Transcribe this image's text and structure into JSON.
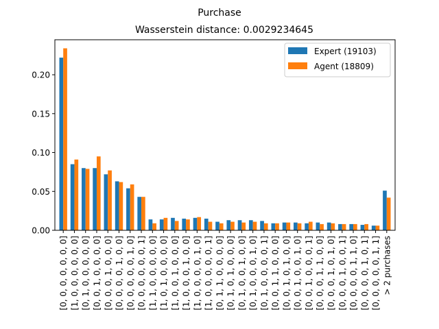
{
  "chart_data": {
    "type": "bar",
    "title": "Purchase",
    "subtitle": "Wasserstein distance: 0.0029234645",
    "xlabel": "",
    "ylabel": "",
    "ylim": [
      0,
      0.245
    ],
    "yticks": [
      "0.00",
      "0.05",
      "0.10",
      "0.15",
      "0.20"
    ],
    "legend_position": "top-right",
    "grid": false,
    "categories": [
      "[0, 0, 0, 0, 0, 0, 0]",
      "[1, 0, 0, 0, 0, 0, 0]",
      "[0, 1, 0, 0, 0, 0, 0]",
      "[0, 0, 1, 0, 0, 0, 0]",
      "[0, 0, 0, 1, 0, 0, 0]",
      "[0, 0, 0, 0, 1, 0, 0]",
      "[0, 0, 0, 0, 0, 1, 0]",
      "[0, 0, 0, 0, 0, 0, 1]",
      "[1, 1, 0, 0, 0, 0, 0]",
      "[1, 0, 1, 0, 0, 0, 0]",
      "[1, 0, 0, 1, 0, 0, 0]",
      "[1, 0, 0, 0, 1, 0, 0]",
      "[1, 0, 0, 0, 0, 1, 0]",
      "[1, 0, 0, 0, 0, 0, 1]",
      "[0, 1, 1, 0, 0, 0, 0]",
      "[0, 1, 0, 1, 0, 0, 0]",
      "[0, 1, 0, 0, 1, 0, 0]",
      "[0, 1, 0, 0, 0, 1, 0]",
      "[0, 1, 0, 0, 0, 0, 1]",
      "[0, 0, 1, 1, 0, 0, 0]",
      "[0, 0, 1, 0, 1, 0, 0]",
      "[0, 0, 1, 0, 0, 1, 0]",
      "[0, 0, 1, 0, 0, 0, 1]",
      "[0, 0, 0, 1, 1, 0, 0]",
      "[0, 0, 0, 1, 0, 1, 0]",
      "[0, 0, 0, 1, 0, 0, 1]",
      "[0, 0, 0, 0, 1, 1, 0]",
      "[0, 0, 0, 0, 1, 0, 1]",
      "[0, 0, 0, 0, 0, 1, 1]",
      "> 2 purchases"
    ],
    "series": [
      {
        "name": "Expert (19103)",
        "color": "#1f77b4",
        "values": [
          0.222,
          0.085,
          0.08,
          0.08,
          0.072,
          0.063,
          0.054,
          0.043,
          0.014,
          0.014,
          0.016,
          0.015,
          0.016,
          0.015,
          0.011,
          0.013,
          0.013,
          0.013,
          0.012,
          0.009,
          0.01,
          0.01,
          0.009,
          0.01,
          0.01,
          0.008,
          0.008,
          0.007,
          0.006,
          0.051
        ]
      },
      {
        "name": "Agent (18809)",
        "color": "#ff7f0e",
        "values": [
          0.234,
          0.091,
          0.079,
          0.095,
          0.077,
          0.062,
          0.059,
          0.043,
          0.009,
          0.016,
          0.012,
          0.014,
          0.017,
          0.011,
          0.009,
          0.011,
          0.01,
          0.011,
          0.009,
          0.009,
          0.01,
          0.009,
          0.011,
          0.008,
          0.009,
          0.008,
          0.008,
          0.008,
          0.006,
          0.042
        ]
      }
    ]
  }
}
